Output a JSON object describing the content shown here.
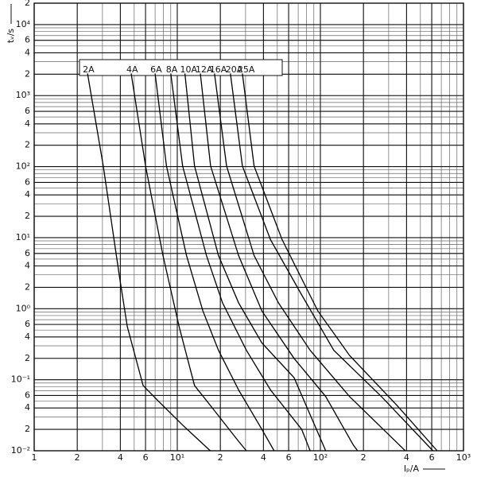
{
  "chart_data": {
    "type": "line",
    "y_label": "tᵥ/s",
    "x_label": "Iₚ/A",
    "log_x": true,
    "log_y": true,
    "grid": true,
    "minor_grid": true,
    "xlim": [
      1,
      1000
    ],
    "ylim": [
      0.01,
      20000
    ],
    "xticks": [
      1,
      2,
      4,
      6,
      {
        "value": 10,
        "label": "10¹"
      },
      {
        "value": 20,
        "label": "2"
      },
      {
        "value": 40,
        "label": "4"
      },
      {
        "value": 60,
        "label": "6"
      },
      {
        "value": 100,
        "label": "10²"
      },
      {
        "value": 200,
        "label": "2"
      },
      {
        "value": 400,
        "label": "4"
      },
      {
        "value": 600,
        "label": "6"
      },
      {
        "value": 1000,
        "label": "10³"
      }
    ],
    "yticks": [
      {
        "value": 0.01,
        "label": "10⁻²"
      },
      {
        "value": 0.02,
        "label": "2"
      },
      {
        "value": 0.04,
        "label": "4"
      },
      {
        "value": 0.06,
        "label": "6"
      },
      {
        "value": 0.1,
        "label": "10⁻¹"
      },
      {
        "value": 0.2,
        "label": "2"
      },
      {
        "value": 0.4,
        "label": "4"
      },
      {
        "value": 0.6,
        "label": "6"
      },
      {
        "value": 1,
        "label": "10⁰"
      },
      2,
      4,
      6,
      {
        "value": 10,
        "label": "10¹"
      },
      {
        "value": 20,
        "label": "2"
      },
      {
        "value": 40,
        "label": "4"
      },
      {
        "value": 60,
        "label": "6"
      },
      {
        "value": 100,
        "label": "10²"
      },
      {
        "value": 200,
        "label": "2"
      },
      {
        "value": 400,
        "label": "4"
      },
      {
        "value": 600,
        "label": "6"
      },
      {
        "value": 1000,
        "label": "10³"
      },
      {
        "value": 2000,
        "label": "2"
      },
      {
        "value": 4000,
        "label": "4"
      },
      {
        "value": 6000,
        "label": "6"
      },
      {
        "value": 10000,
        "label": "10⁴"
      },
      {
        "value": 20000,
        "label": "2"
      }
    ],
    "series": [
      {
        "name": "2A",
        "color": "#000000",
        "x": [
          2.36,
          3.04,
          3.93,
          4.47,
          5.77,
          7.45,
          10.9,
          17
        ],
        "values": [
          2050,
          102,
          2.97,
          0.56,
          0.083,
          0.049,
          0.023,
          0.01
        ]
      },
      {
        "name": "4A",
        "color": "#000000",
        "x": [
          4.76,
          6.0,
          7.94,
          10.3,
          13.2,
          17.1,
          26.8,
          30.4
        ],
        "values": [
          2050,
          102,
          5.6,
          0.56,
          0.083,
          0.043,
          0.0136,
          0.01
        ]
      },
      {
        "name": "6A",
        "color": "#000000",
        "x": [
          7.0,
          8.4,
          11.6,
          15.1,
          19.4,
          26.8,
          39,
          47.5
        ],
        "values": [
          2050,
          102,
          5.6,
          0.93,
          0.26,
          0.072,
          0.02,
          0.01
        ]
      },
      {
        "name": "8A",
        "color": "#000000",
        "x": [
          9.0,
          10.9,
          16,
          20.7,
          30.4,
          44.8,
          74,
          84.8
        ],
        "values": [
          2050,
          102,
          5.6,
          1.21,
          0.26,
          0.072,
          0.02,
          0.01
        ]
      },
      {
        "name": "10A",
        "color": "#000000",
        "x": [
          11.3,
          13.2,
          19.4,
          26.8,
          39,
          65.5,
          109
        ],
        "values": [
          2050,
          102,
          5.6,
          1.21,
          0.33,
          0.107,
          0.01
        ]
      },
      {
        "name": "12A",
        "color": "#000000",
        "x": [
          14.5,
          17.1,
          26.8,
          39,
          65.5,
          109,
          170,
          182
        ],
        "values": [
          2050,
          102,
          5.6,
          0.93,
          0.2,
          0.058,
          0.012,
          0.01
        ]
      },
      {
        "name": "16A",
        "color": "#000000",
        "x": [
          18.2,
          22.1,
          34.4,
          50.9,
          84.8,
          160,
          392
        ],
        "values": [
          2050,
          102,
          5.6,
          1.21,
          0.26,
          0.058,
          0.01
        ]
      },
      {
        "name": "20A",
        "color": "#000000",
        "x": [
          23.5,
          28.5,
          44.8,
          74,
          124,
          267,
          611
        ],
        "values": [
          2050,
          102,
          9.4,
          1.56,
          0.26,
          0.058,
          0.01
        ]
      },
      {
        "name": "25A",
        "color": "#000000",
        "x": [
          28.5,
          34.4,
          54,
          96,
          160,
          345,
          655
        ],
        "values": [
          2050,
          102,
          9.4,
          0.93,
          0.22,
          0.043,
          0.01
        ]
      }
    ]
  }
}
